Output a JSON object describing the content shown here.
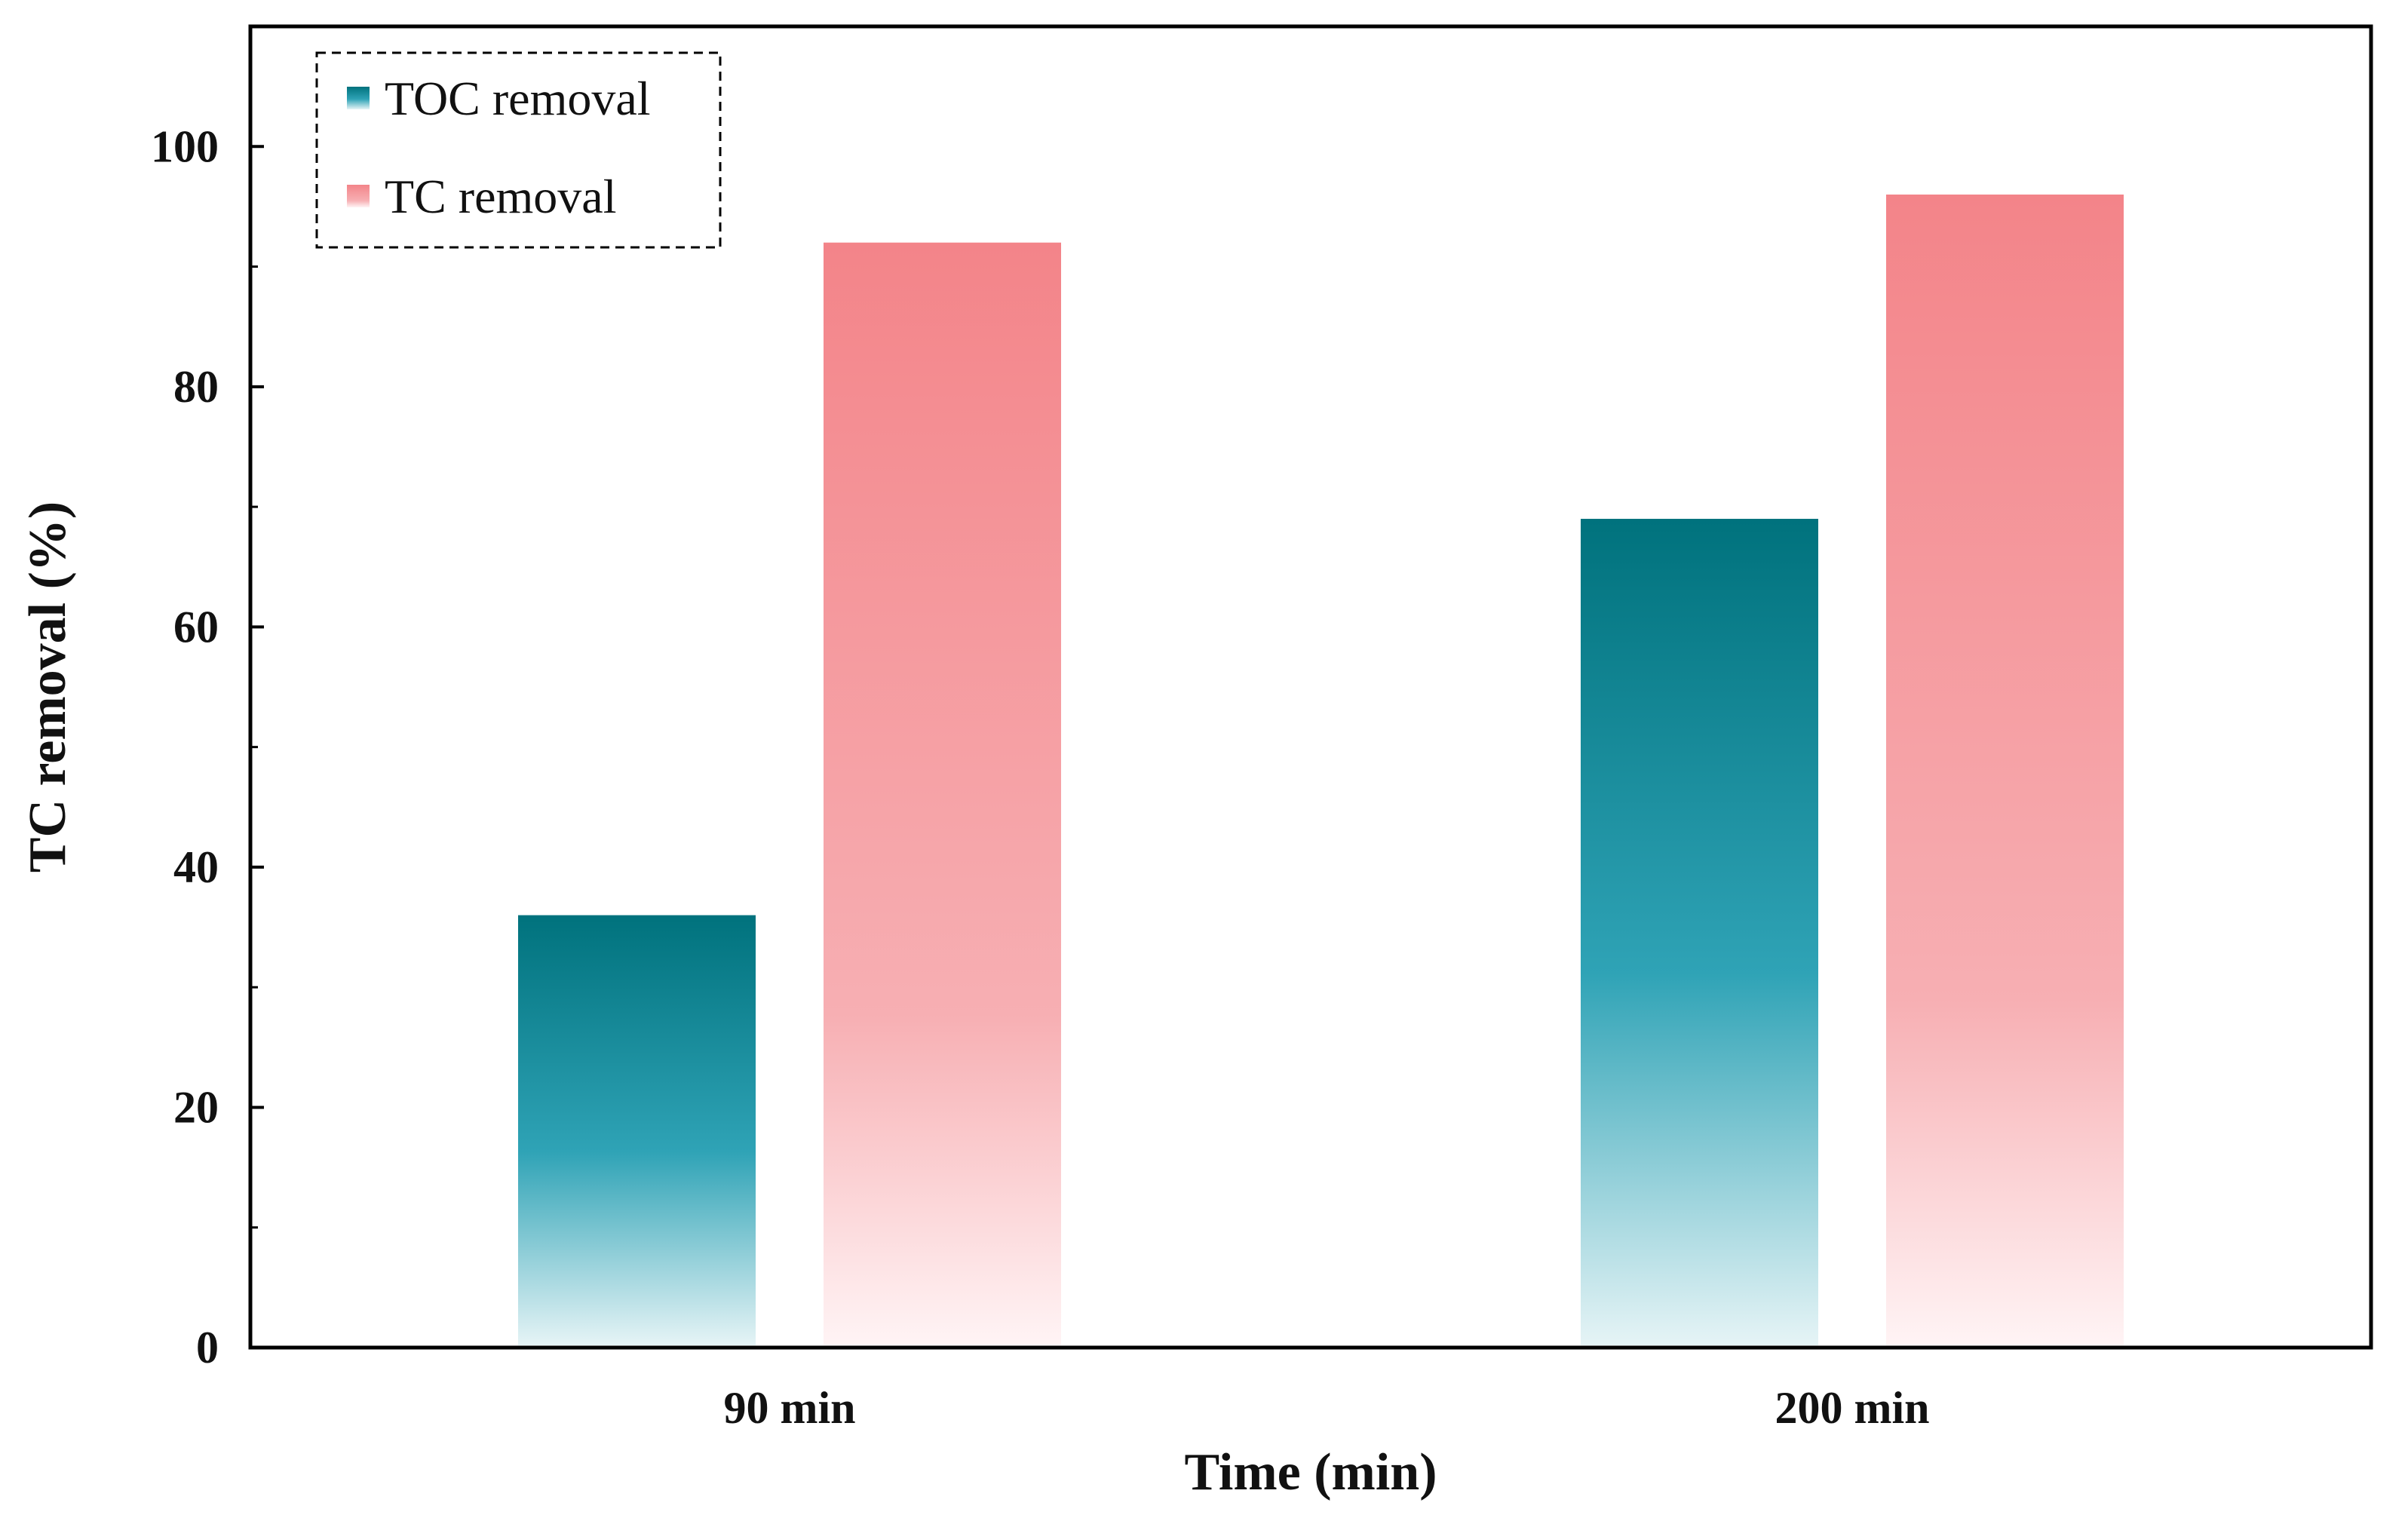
{
  "chart_data": {
    "type": "bar",
    "title": "",
    "xlabel": "Time (min)",
    "ylabel": "TC removal (%)",
    "categories": [
      "90 min",
      "200 min"
    ],
    "series": [
      {
        "name": "TOC removal",
        "values": [
          36,
          69
        ],
        "color_top": "#00727d",
        "color_mid": "#2fa3b6",
        "color_bottom": "#e6f4f6"
      },
      {
        "name": "TC removal",
        "values": [
          92,
          96
        ],
        "color_top": "#f38489",
        "color_mid": "#f7afb3",
        "color_bottom": "#fff4f5"
      }
    ],
    "ylim": [
      0,
      110
    ],
    "yticks": [
      "0",
      "20",
      "40",
      "60",
      "80",
      "100"
    ],
    "ytick_values": [
      0,
      20,
      40,
      60,
      80,
      100
    ],
    "grid": false,
    "legend_position": "top-left"
  }
}
